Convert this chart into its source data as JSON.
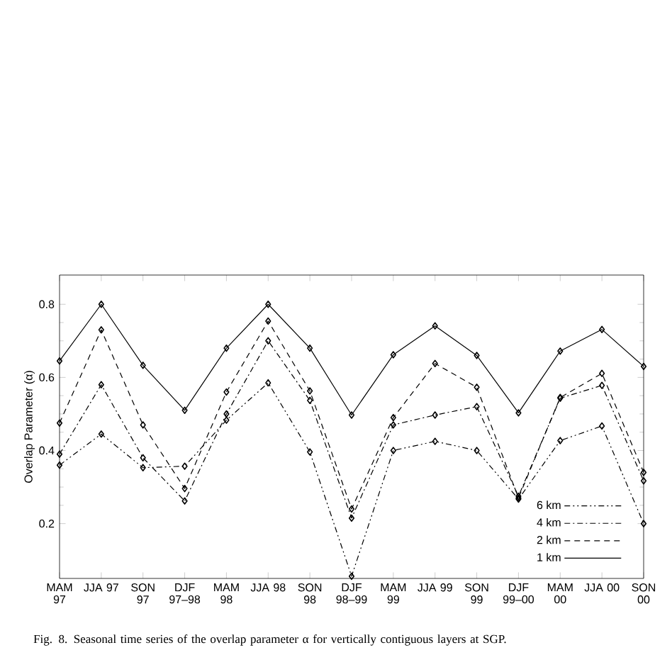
{
  "chart_data": {
    "type": "line",
    "ylabel": "Overlap Parameter (α)",
    "categories": [
      "MAM 97",
      "JJA 97",
      "SON 97",
      "DJF 97–98",
      "MAM 98",
      "JJA 98",
      "SON 98",
      "DJF 98–99",
      "MAM 99",
      "JJA 99",
      "SON 99",
      "DJF 99–00",
      "MAM 00",
      "JJA 00",
      "SON 00"
    ],
    "series": [
      {
        "name": "6 km",
        "color": "#000000",
        "line_style": "dashdotdot",
        "values": [
          0.36,
          0.445,
          0.353,
          0.357,
          0.483,
          0.585,
          0.396,
          0.056,
          0.4,
          0.425,
          0.4,
          0.267,
          0.427,
          0.467,
          0.2
        ]
      },
      {
        "name": "4 km",
        "color": "#000000",
        "line_style": "dashdot",
        "values": [
          0.39,
          0.58,
          0.38,
          0.262,
          0.5,
          0.7,
          0.537,
          0.215,
          0.47,
          0.497,
          0.52,
          0.275,
          0.543,
          0.578,
          0.317
        ]
      },
      {
        "name": "2 km",
        "color": "#000000",
        "line_style": "dashed",
        "values": [
          0.475,
          0.73,
          0.47,
          0.296,
          0.56,
          0.754,
          0.563,
          0.24,
          0.49,
          0.638,
          0.573,
          0.27,
          0.545,
          0.611,
          0.34
        ]
      },
      {
        "name": "1 km",
        "color": "#000000",
        "line_style": "solid",
        "values": [
          0.645,
          0.8,
          0.633,
          0.51,
          0.68,
          0.8,
          0.68,
          0.497,
          0.662,
          0.741,
          0.66,
          0.503,
          0.672,
          0.731,
          0.63
        ]
      }
    ],
    "ylim": [
      0.05,
      0.88
    ],
    "yticks": [
      0.2,
      0.4,
      0.6,
      0.8
    ],
    "marker": "diamond",
    "legend": "bottom right",
    "grid": false,
    "annotations": [
      "Fig. 8. Seasonal time series of the overlap parameter α for vertically contiguous layers at SGP."
    ]
  }
}
